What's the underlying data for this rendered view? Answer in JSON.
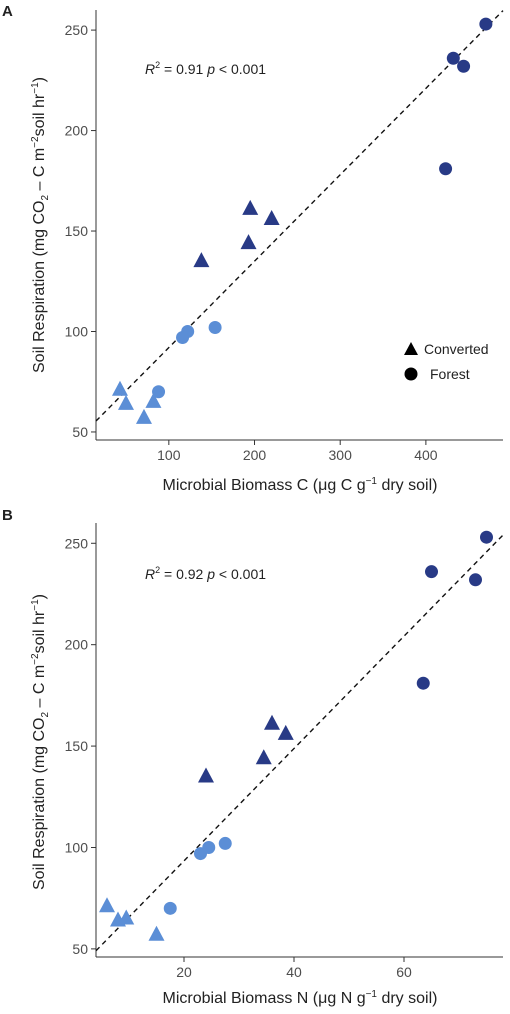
{
  "colors": {
    "light": "#5b8ed6",
    "dark": "#283a86",
    "axis": "#333333",
    "fit": "#111111"
  },
  "legend": {
    "items": [
      {
        "label": "Converted",
        "shape": "triangle"
      },
      {
        "label": "Forest",
        "shape": "circle"
      }
    ]
  },
  "chart_data": [
    {
      "panel": "A",
      "type": "scatter",
      "xlabel": "Microbial Biomass C (μg C g⁻¹ dry soil)",
      "ylabel": "Soil Respiration (mg CO₂ – C m⁻²soil hr⁻¹)",
      "annotation": "R² = 0.91 p < 0.001",
      "xlim": [
        15,
        490
      ],
      "ylim": [
        46,
        260
      ],
      "xticks": [
        100,
        200,
        300,
        400
      ],
      "yticks": [
        50,
        100,
        150,
        200,
        250
      ],
      "fit_line": {
        "slope": 0.43,
        "intercept": 49
      },
      "points": [
        {
          "x": 470,
          "y": 253,
          "shape": "circle",
          "tone": "dark"
        },
        {
          "x": 432,
          "y": 236,
          "shape": "circle",
          "tone": "dark"
        },
        {
          "x": 444,
          "y": 232,
          "shape": "circle",
          "tone": "dark"
        },
        {
          "x": 423,
          "y": 181,
          "shape": "circle",
          "tone": "dark"
        },
        {
          "x": 195,
          "y": 161,
          "shape": "triangle",
          "tone": "dark"
        },
        {
          "x": 220,
          "y": 156,
          "shape": "triangle",
          "tone": "dark"
        },
        {
          "x": 193,
          "y": 144,
          "shape": "triangle",
          "tone": "dark"
        },
        {
          "x": 138,
          "y": 135,
          "shape": "triangle",
          "tone": "dark"
        },
        {
          "x": 154,
          "y": 102,
          "shape": "circle",
          "tone": "light"
        },
        {
          "x": 122,
          "y": 100,
          "shape": "circle",
          "tone": "light"
        },
        {
          "x": 116,
          "y": 97,
          "shape": "circle",
          "tone": "light"
        },
        {
          "x": 88,
          "y": 70,
          "shape": "circle",
          "tone": "light"
        },
        {
          "x": 43,
          "y": 71,
          "shape": "triangle",
          "tone": "light"
        },
        {
          "x": 50,
          "y": 64,
          "shape": "triangle",
          "tone": "light"
        },
        {
          "x": 82,
          "y": 65,
          "shape": "triangle",
          "tone": "light"
        },
        {
          "x": 71,
          "y": 57,
          "shape": "triangle",
          "tone": "light"
        }
      ]
    },
    {
      "panel": "B",
      "type": "scatter",
      "xlabel": "Microbial Biomass N (μg N g⁻¹ dry soil)",
      "ylabel": "Soil Respiration (mg CO₂ – C m⁻²soil hr⁻¹)",
      "annotation": "R² = 0.92 p < 0.001",
      "xlim": [
        4,
        78
      ],
      "ylim": [
        46,
        260
      ],
      "xticks": [
        20,
        40,
        60
      ],
      "yticks": [
        50,
        100,
        150,
        200,
        250
      ],
      "fit_line": {
        "slope": 2.77,
        "intercept": 38
      },
      "points": [
        {
          "x": 75,
          "y": 253,
          "shape": "circle",
          "tone": "dark"
        },
        {
          "x": 65,
          "y": 236,
          "shape": "circle",
          "tone": "dark"
        },
        {
          "x": 73,
          "y": 232,
          "shape": "circle",
          "tone": "dark"
        },
        {
          "x": 63.5,
          "y": 181,
          "shape": "circle",
          "tone": "dark"
        },
        {
          "x": 36,
          "y": 161,
          "shape": "triangle",
          "tone": "dark"
        },
        {
          "x": 38.5,
          "y": 156,
          "shape": "triangle",
          "tone": "dark"
        },
        {
          "x": 34.5,
          "y": 144,
          "shape": "triangle",
          "tone": "dark"
        },
        {
          "x": 24,
          "y": 135,
          "shape": "triangle",
          "tone": "dark"
        },
        {
          "x": 27.5,
          "y": 102,
          "shape": "circle",
          "tone": "light"
        },
        {
          "x": 24.5,
          "y": 100,
          "shape": "circle",
          "tone": "light"
        },
        {
          "x": 23,
          "y": 97,
          "shape": "circle",
          "tone": "light"
        },
        {
          "x": 17.5,
          "y": 70,
          "shape": "circle",
          "tone": "light"
        },
        {
          "x": 6,
          "y": 71,
          "shape": "triangle",
          "tone": "light"
        },
        {
          "x": 8,
          "y": 64,
          "shape": "triangle",
          "tone": "light"
        },
        {
          "x": 9.5,
          "y": 65,
          "shape": "triangle",
          "tone": "light"
        },
        {
          "x": 15,
          "y": 57,
          "shape": "triangle",
          "tone": "light"
        }
      ]
    }
  ]
}
